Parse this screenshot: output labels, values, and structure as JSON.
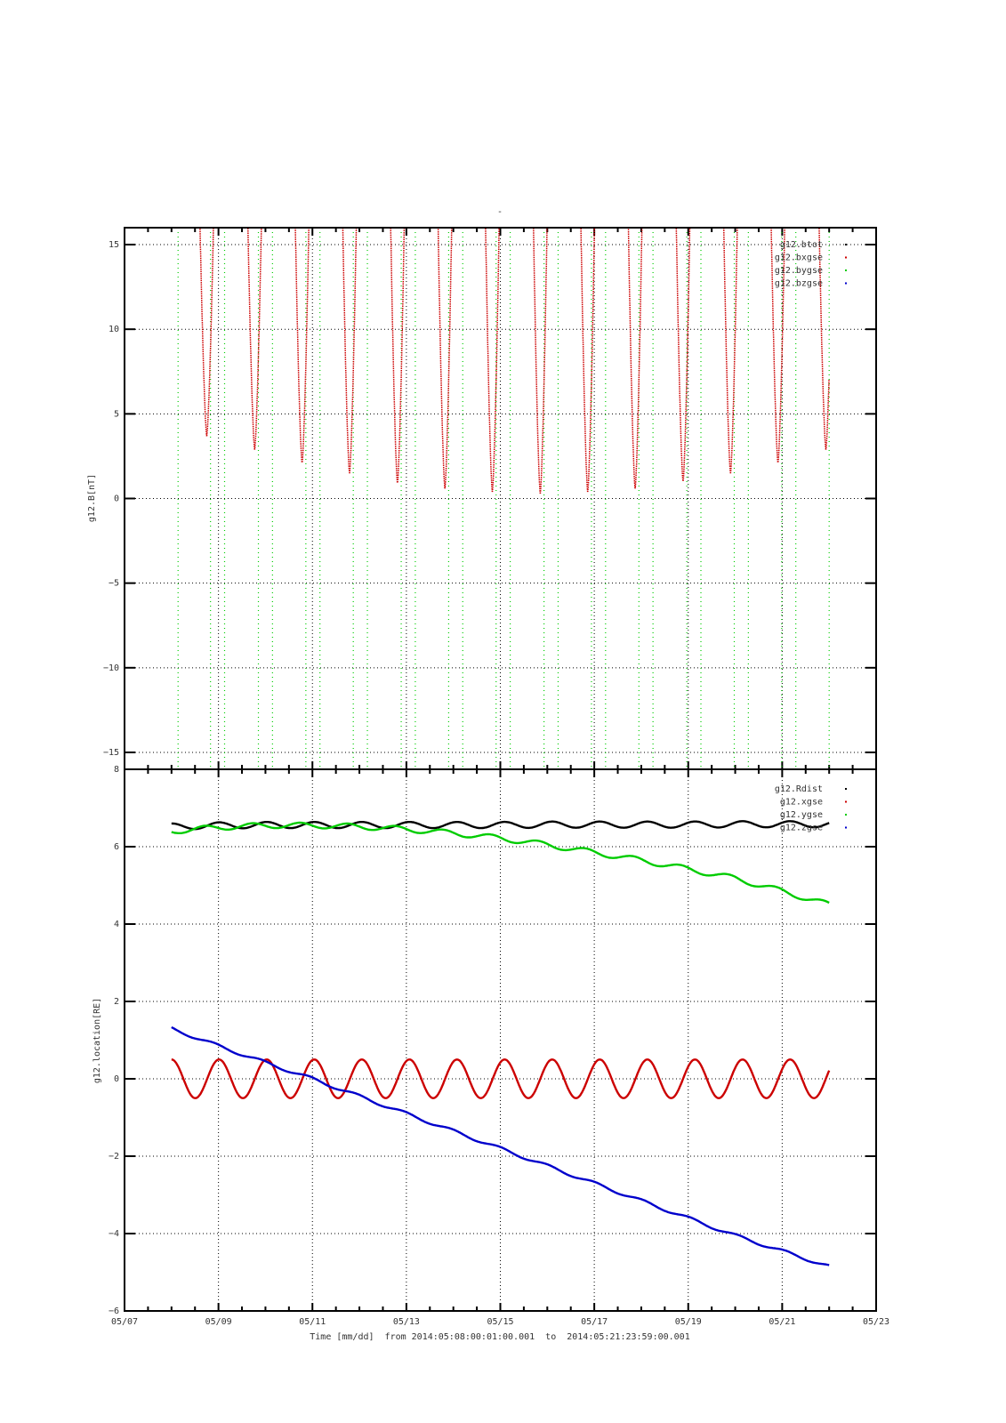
{
  "chart_data": [
    {
      "type": "line",
      "title": "-",
      "ylabel": "g12.B[nT]",
      "xlim_days": [
        "05/07",
        "05/23"
      ],
      "ylim": [
        -16,
        16
      ],
      "yticks": [
        15,
        10,
        5,
        0,
        -5,
        -10,
        -15
      ],
      "grid": true,
      "legend_position": "top-right",
      "series": [
        {
          "name": "g12.btot",
          "color": "#000000",
          "note": "off-scale"
        },
        {
          "name": "g12.bxgse",
          "color": "#cc0000",
          "dip_minima_day_of_may": [
            8.75,
            9.77,
            10.78,
            11.79,
            12.81,
            13.82,
            14.83,
            15.85,
            16.86,
            17.87,
            18.89,
            19.9,
            20.91,
            21.93
          ],
          "dip_minima_values": [
            3.7,
            2.9,
            2.1,
            1.5,
            0.9,
            0.6,
            0.4,
            0.3,
            0.4,
            0.6,
            1.0,
            1.5,
            2.1,
            2.9
          ]
        },
        {
          "name": "g12.bygse",
          "color": "#00cc00",
          "spike_days_of_may": [
            8.14,
            8.83,
            9.13,
            9.85,
            10.15,
            10.86,
            11.16,
            11.87,
            12.17,
            12.89,
            13.19,
            13.9,
            14.2,
            14.91,
            15.21,
            15.93,
            16.23,
            16.94,
            17.24,
            17.95,
            18.25,
            18.97,
            19.27,
            19.98,
            20.28,
            20.99,
            21.29,
            22.0
          ]
        },
        {
          "name": "g12.bzgse",
          "color": "#0000cc",
          "note": "off-scale"
        }
      ]
    },
    {
      "type": "line",
      "ylabel": "g12.location[RE]",
      "xlabel": "Time [mm/dd]  from 2014:05:08:00:01:00.001  to  2014:05:21:23:59:00.001",
      "xticks": [
        "05/07",
        "05/09",
        "05/11",
        "05/13",
        "05/15",
        "05/17",
        "05/19",
        "05/21",
        "05/23"
      ],
      "ylim": [
        -6,
        8
      ],
      "yticks": [
        8,
        6,
        4,
        2,
        0,
        -2,
        -4,
        -6
      ],
      "grid": true,
      "legend_position": "top-right",
      "x_days_of_may": [
        8,
        9,
        10,
        11,
        12,
        13,
        14,
        15,
        16,
        17,
        18,
        19,
        20,
        21,
        22
      ],
      "series": [
        {
          "name": "g12.Rdist",
          "color": "#000000",
          "trend": [
            6.52,
            6.55,
            6.56,
            6.56,
            6.56,
            6.56,
            6.56,
            6.56,
            6.57,
            6.57,
            6.57,
            6.57,
            6.58,
            6.58,
            6.58
          ],
          "oscillation_amplitude": 0.08
        },
        {
          "name": "g12.xgse",
          "color": "#cc0000",
          "trend": [
            0,
            0,
            0,
            0,
            0,
            0,
            0,
            0,
            0,
            0,
            0,
            0,
            0,
            0,
            0
          ],
          "oscillation_amplitude": 0.5
        },
        {
          "name": "g12.ygse",
          "color": "#00cc00",
          "trend": [
            6.4,
            6.5,
            6.55,
            6.55,
            6.52,
            6.45,
            6.35,
            6.22,
            6.05,
            5.85,
            5.65,
            5.42,
            5.18,
            4.85,
            4.5
          ],
          "oscillation_amplitude": 0.07
        },
        {
          "name": "g12.zgse",
          "color": "#0000cc",
          "trend": [
            1.3,
            0.85,
            0.42,
            0.0,
            -0.45,
            -0.9,
            -1.35,
            -1.8,
            -2.25,
            -2.7,
            -3.15,
            -3.6,
            -4.05,
            -4.45,
            -4.85
          ],
          "oscillation_amplitude": 0.04
        }
      ],
      "period_days": 1.013
    }
  ]
}
